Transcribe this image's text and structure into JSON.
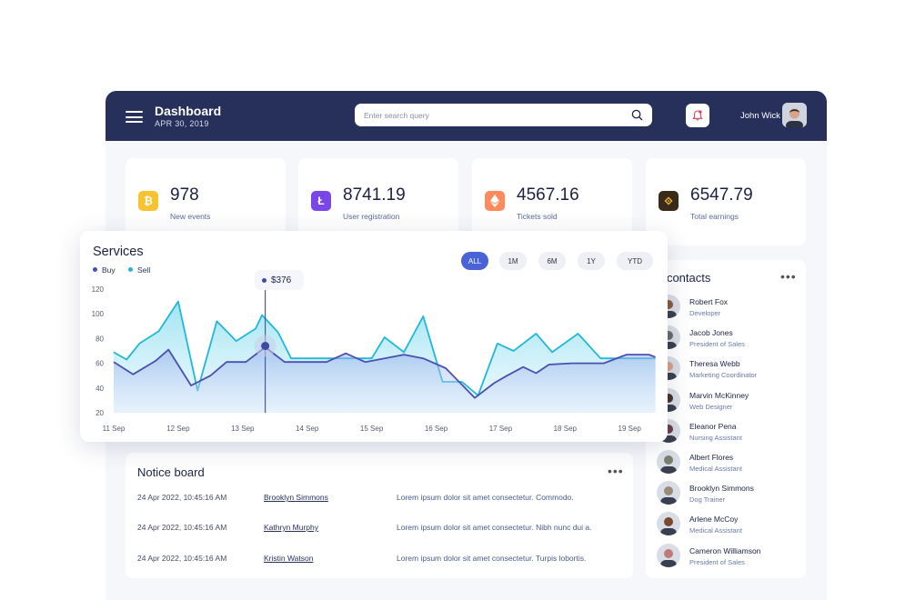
{
  "header": {
    "title": "Dashboard",
    "date": "APR 30, 2019",
    "search_placeholder": "Enter search query",
    "user_name": "John Wick",
    "icons": {
      "menu": "hamburger-icon",
      "search": "search-icon",
      "notifications": "bell-icon"
    }
  },
  "stats": [
    {
      "value": "978",
      "label": "New events",
      "icon": "bitcoin-icon",
      "color": "#f7c331"
    },
    {
      "value": "8741.19",
      "label": "User registration",
      "icon": "litecoin-icon",
      "color": "#7b46e8"
    },
    {
      "value": "4567.16",
      "label": "Tickets sold",
      "icon": "ethereum-icon",
      "color": "#ff8a5c"
    },
    {
      "value": "6547.79",
      "label": "Total earnings",
      "icon": "binance-icon",
      "color": "#3a2a1a"
    }
  ],
  "services": {
    "title": "Services",
    "legend": [
      {
        "name": "Buy",
        "color": "#4b4fb0"
      },
      {
        "name": "Sell",
        "color": "#21b8d8"
      }
    ],
    "ranges": [
      "ALL",
      "1M",
      "6M",
      "1Y",
      "YTD"
    ],
    "active_range": "ALL",
    "tooltip": "$376"
  },
  "chart_data": {
    "type": "area",
    "title": "Services",
    "x": [
      "11 Sep",
      "12 Sep",
      "13 Sep",
      "14 Sep",
      "15 Sep",
      "16 Sep",
      "17 Sep",
      "18 Sep",
      "19 Sep"
    ],
    "ylim": [
      20,
      120
    ],
    "yticks": [
      120,
      100,
      80,
      60,
      40,
      20
    ],
    "grid": false,
    "legend_placement": "top-left",
    "series": [
      {
        "name": "Sell",
        "color": "#21b8d8",
        "points": [
          [
            0,
            69
          ],
          [
            0.2,
            63
          ],
          [
            0.4,
            76
          ],
          [
            0.7,
            86
          ],
          [
            1.0,
            110
          ],
          [
            1.3,
            38
          ],
          [
            1.6,
            94
          ],
          [
            1.9,
            78
          ],
          [
            2.2,
            88
          ],
          [
            2.3,
            99
          ],
          [
            2.55,
            85
          ],
          [
            2.75,
            64
          ],
          [
            3.0,
            64
          ],
          [
            3.3,
            64
          ],
          [
            3.6,
            64
          ],
          [
            4.0,
            64
          ],
          [
            4.2,
            81
          ],
          [
            4.5,
            69
          ],
          [
            4.8,
            98
          ],
          [
            5.1,
            45
          ],
          [
            5.4,
            45
          ],
          [
            5.65,
            34
          ],
          [
            5.95,
            76
          ],
          [
            6.2,
            70
          ],
          [
            6.55,
            84
          ],
          [
            6.8,
            69
          ],
          [
            7.2,
            84
          ],
          [
            7.55,
            64
          ],
          [
            8.0,
            64
          ],
          [
            8.4,
            64
          ]
        ]
      },
      {
        "name": "Buy",
        "color": "#4b4fb0",
        "points": [
          [
            0,
            61
          ],
          [
            0.3,
            51
          ],
          [
            0.65,
            62
          ],
          [
            0.85,
            71
          ],
          [
            1.2,
            42
          ],
          [
            1.5,
            50
          ],
          [
            1.75,
            61
          ],
          [
            2.05,
            61
          ],
          [
            2.35,
            73
          ],
          [
            2.65,
            61
          ],
          [
            3.0,
            61
          ],
          [
            3.3,
            61
          ],
          [
            3.6,
            68
          ],
          [
            3.9,
            61
          ],
          [
            4.2,
            64
          ],
          [
            4.5,
            67
          ],
          [
            4.8,
            64
          ],
          [
            5.15,
            56
          ],
          [
            5.6,
            32
          ],
          [
            5.9,
            44
          ],
          [
            6.1,
            50
          ],
          [
            6.35,
            57
          ],
          [
            6.55,
            52
          ],
          [
            6.75,
            59
          ],
          [
            7.1,
            60
          ],
          [
            7.6,
            60
          ],
          [
            7.95,
            67
          ],
          [
            8.3,
            67
          ],
          [
            8.4,
            65
          ]
        ]
      }
    ]
  },
  "contacts": {
    "title": "My contacts",
    "items": [
      {
        "name": "Robert Fox",
        "role": "Developer"
      },
      {
        "name": "Jacob Jones",
        "role": "President of Sales"
      },
      {
        "name": "Theresa Webb",
        "role": "Marketing Coordinator"
      },
      {
        "name": "Marvin McKinney",
        "role": "Web Designer"
      },
      {
        "name": "Eleanor Pena",
        "role": "Nursing Assistant"
      },
      {
        "name": "Albert Flores",
        "role": "Medical Assistant"
      },
      {
        "name": "Brooklyn Simmons",
        "role": "Dog Trainer"
      },
      {
        "name": "Arlene McCoy",
        "role": "Medical Assistant"
      },
      {
        "name": "Cameron Williamson",
        "role": "President of Sales"
      }
    ]
  },
  "notice": {
    "title": "Notice board",
    "rows": [
      {
        "date": "24 Apr 2022, 10:45:16 AM",
        "name": "Brooklyn Simmons",
        "message": "Lorem ipsum dolor sit amet consectetur. Commodo."
      },
      {
        "date": "24 Apr 2022, 10:45:16 AM",
        "name": "Kathryn Murphy",
        "message": "Lorem ipsum dolor sit amet consectetur. Nibh nunc dui a."
      },
      {
        "date": "24 Apr 2022, 10:45:16 AM",
        "name": "Kristin Watson",
        "message": "Lorem ipsum dolor sit amet consectetur. Turpis lobortis."
      }
    ]
  }
}
